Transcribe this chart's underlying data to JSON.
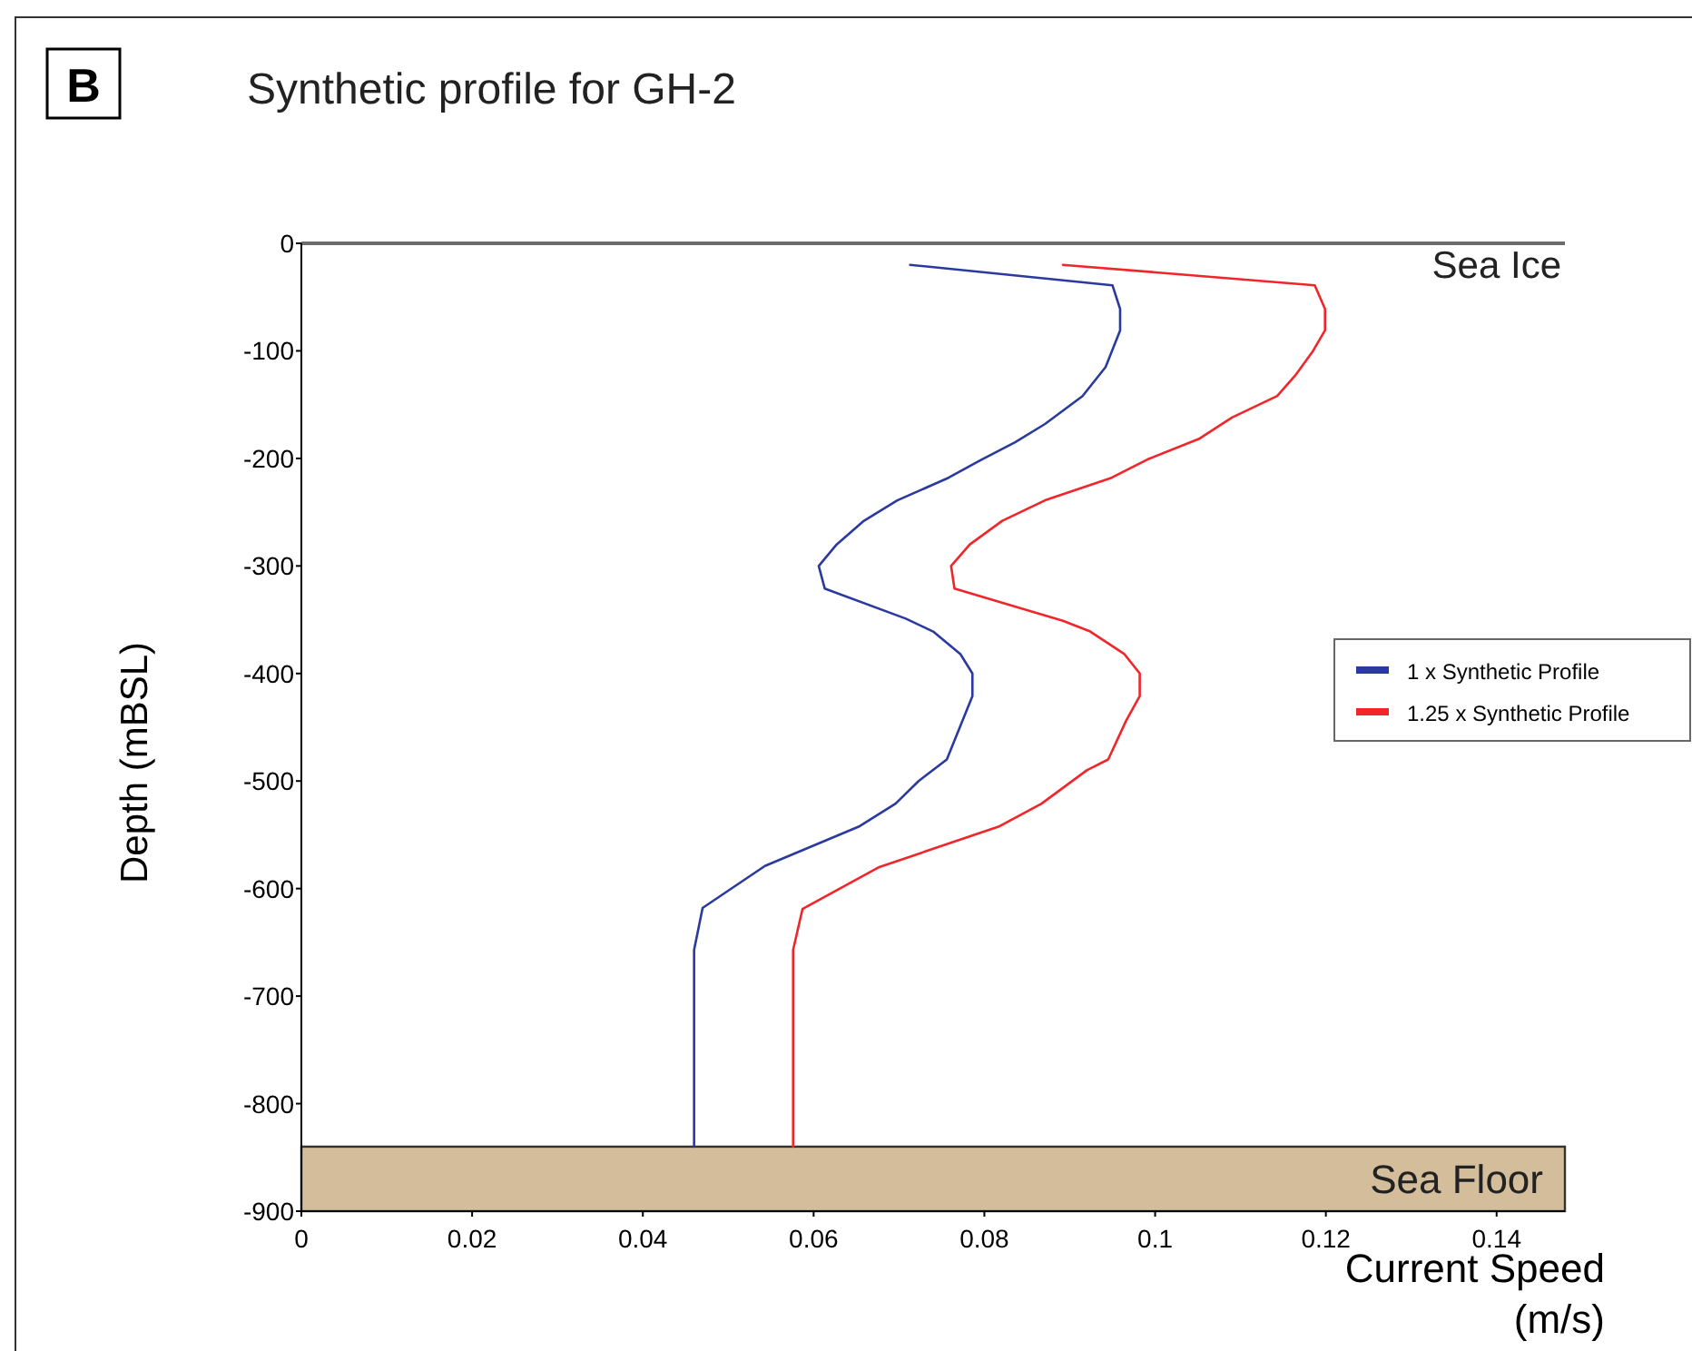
{
  "chart_data": {
    "type": "line",
    "title": "Synthetic profile for GH-2",
    "xlabel": "Current Speed (m/s)",
    "ylabel": "Depth (mBSL)",
    "annotations": [
      "B"
    ],
    "xlim": [
      0,
      0.148
    ],
    "xticks": [
      0,
      0.02,
      0.04,
      0.06,
      0.08,
      0.1,
      0.12,
      0.14
    ],
    "ylim": [
      -900,
      0
    ],
    "yticks": [
      0,
      -100,
      -200,
      -300,
      -400,
      -500,
      -600,
      -700,
      -800,
      -900
    ],
    "grid": false,
    "legend": "right",
    "marker": "none",
    "line_style": "solid",
    "series": [
      {
        "name": "1 x Synthetic Profile",
        "color": "#2a3a9e",
        "x": [
          0.0713,
          0.095,
          0.0959,
          0.0959,
          0.0942,
          0.0915,
          0.0871,
          0.0836,
          0.0797,
          0.0758,
          0.0698,
          0.0659,
          0.0627,
          0.0606,
          0.0613,
          0.0708,
          0.074,
          0.0772,
          0.0786,
          0.0786,
          0.0756,
          0.0723,
          0.0696,
          0.0654,
          0.0543,
          0.047,
          0.046,
          0.046
        ],
        "values": [
          -20,
          -39,
          -61,
          -81,
          -115,
          -142,
          -168,
          -185,
          -201,
          -218,
          -239,
          -258,
          -280,
          -300,
          -321,
          -349,
          -361,
          -382,
          -400,
          -421,
          -480,
          -500,
          -521,
          -542,
          -579,
          -618,
          -657,
          -840
        ]
      },
      {
        "name": "1.25 x Synthetic Profile",
        "color": "#f0262a",
        "x": [
          0.0892,
          0.1187,
          0.1199,
          0.1199,
          0.1185,
          0.1164,
          0.1143,
          0.109,
          0.1051,
          0.0991,
          0.0949,
          0.0871,
          0.0821,
          0.0783,
          0.0761,
          0.0765,
          0.0892,
          0.0924,
          0.0964,
          0.0982,
          0.0982,
          0.0966,
          0.0945,
          0.092,
          0.0867,
          0.0818,
          0.0677,
          0.0587,
          0.0576,
          0.0576
        ],
        "values": [
          -20,
          -39,
          -61,
          -81,
          -100,
          -123,
          -142,
          -162,
          -182,
          -201,
          -218,
          -239,
          -258,
          -280,
          -300,
          -321,
          -351,
          -361,
          -382,
          -400,
          -421,
          -444,
          -480,
          -490,
          -521,
          -542,
          -580,
          -619,
          -657,
          -840
        ]
      }
    ],
    "ref_lines": [
      {
        "axis": "y",
        "value": 0,
        "label": "Sea Ice",
        "color": "#6b6b6b"
      }
    ],
    "bands": [
      {
        "axis": "y",
        "from": -840,
        "to": -900,
        "label": "Sea Floor",
        "color": "#d3bd9a"
      }
    ]
  }
}
